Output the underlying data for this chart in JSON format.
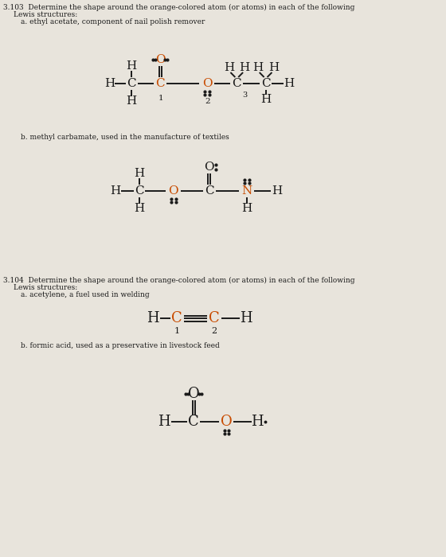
{
  "bg_color": "#e8e4dc",
  "text_color": "#1a1a1a",
  "orange_color": "#c84b00",
  "title_103": "3.103  Determine the shape around the orange-colored atom (or atoms) in each of the following",
  "subtitle_103": "Lewis structures:",
  "label_a1": "a. ethyl acetate, component of nail polish remover",
  "label_b1": "b. methyl carbamate, used in the manufacture of textiles",
  "title_104": "3.104  Determine the shape around the orange-colored atom (or atoms) in each of the following",
  "subtitle_104": "Lewis structures:",
  "label_a2": "a. acetylene, a fuel used in welding",
  "label_b2": "b. formic acid, used as a preservative in livestock feed"
}
